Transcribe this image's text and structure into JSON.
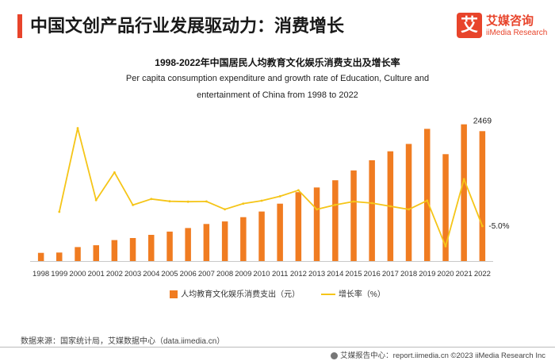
{
  "header": {
    "title": "中国文创产品行业发展驱动力：消费增长",
    "logo_mark": "艾",
    "logo_cn": "艾媒咨询",
    "logo_en": "iiMedia Research"
  },
  "chart_data": {
    "type": "bar",
    "title": "1998-2022年中国居民人均教育文化娱乐消费支出及增长率",
    "subtitle_line1": "Per capita consumption expenditure and growth rate of Education, Culture and",
    "subtitle_line2": "entertainment of China from 1998 to 2022",
    "categories": [
      "1998",
      "1999",
      "2000",
      "2001",
      "2002",
      "2003",
      "2004",
      "2005",
      "2006",
      "2007",
      "2008",
      "2009",
      "2010",
      "2011",
      "2012",
      "2013",
      "2014",
      "2015",
      "2016",
      "2017",
      "2018",
      "2019",
      "2020",
      "2021",
      "2022"
    ],
    "series": [
      {
        "name": "人均教育文化娱乐消费支出（元）",
        "kind": "bar",
        "color": "#f07c21",
        "values": [
          155,
          162,
          265,
          300,
          398,
          437,
          498,
          560,
          628,
          705,
          753,
          834,
          941,
          1091,
          1310,
          1398,
          1536,
          1723,
          1915,
          2086,
          2226,
          2513,
          2032,
          2599,
          2469
        ]
      },
      {
        "name": "增长率（%）",
        "kind": "line",
        "color": "#f5c518",
        "values": [
          null,
          5.0,
          63.6,
          13.2,
          32.6,
          9.8,
          14.0,
          12.4,
          12.1,
          12.3,
          6.8,
          10.8,
          12.8,
          15.9,
          20.1,
          6.7,
          9.9,
          12.2,
          11.1,
          8.9,
          6.7,
          12.9,
          -19.1,
          27.9,
          -5.0
        ]
      }
    ],
    "data_labels": [
      {
        "series": 0,
        "index": 24,
        "text": "2469"
      },
      {
        "series": 1,
        "index": 24,
        "text": "-5.0%"
      }
    ],
    "ylim_bar": [
      0,
      2700
    ],
    "ylim_line": [
      -30,
      70
    ],
    "grid": false,
    "legend_position": "bottom"
  },
  "legend": {
    "bar_label": "人均教育文化娱乐消费支出（元）",
    "line_label": "增长率（%）"
  },
  "source": "数据来源：国家统计局，艾媒数据中心（data.iimedia.cn）",
  "footer": "艾媒报告中心：report.iimedia.cn  ©2023 iiMedia Research Inc"
}
